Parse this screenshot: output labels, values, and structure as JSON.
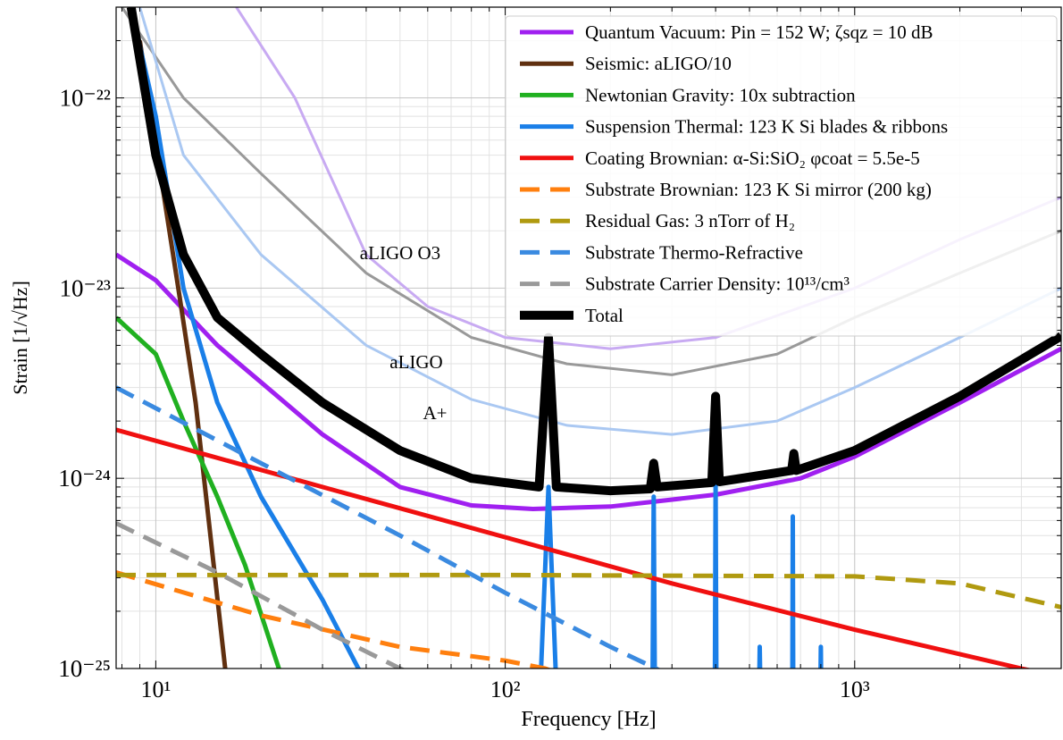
{
  "chart_data": {
    "type": "line",
    "x_label": "Frequency [Hz]",
    "y_label": "Strain [1/√Hz]",
    "xscale": "log",
    "yscale": "log",
    "grid": true,
    "legend": "upper right",
    "xlim": [
      7.7,
      3900
    ],
    "ylim": [
      1e-25,
      3e-22
    ],
    "xticks": [
      {
        "value": 10,
        "label": "10¹"
      },
      {
        "value": 100,
        "label": "10²"
      },
      {
        "value": 1000,
        "label": "10³"
      }
    ],
    "yticks": [
      {
        "value": 1e-25,
        "label": "10⁻²⁵"
      },
      {
        "value": 1e-24,
        "label": "10⁻²⁴"
      },
      {
        "value": 1e-23,
        "label": "10⁻²³"
      },
      {
        "value": 1e-22,
        "label": "10⁻²²"
      }
    ],
    "xminorticks": [
      8,
      9,
      20,
      30,
      40,
      50,
      60,
      70,
      80,
      90,
      200,
      300,
      400,
      500,
      600,
      700,
      800,
      900,
      2000,
      3000
    ],
    "yminorticks": [
      2e-25,
      3e-25,
      4e-25,
      5e-25,
      6e-25,
      7e-25,
      8e-25,
      9e-25,
      2e-24,
      3e-24,
      4e-24,
      5e-24,
      6e-24,
      7e-24,
      8e-24,
      9e-24,
      2e-23,
      3e-23,
      4e-23,
      5e-23,
      6e-23,
      7e-23,
      8e-23,
      9e-23,
      2e-22
    ],
    "reference_curves": [
      {
        "name": "aLIGO O3",
        "color": "#c8aaf2",
        "x": [
          17,
          25,
          40,
          60,
          100,
          200,
          400,
          1000,
          2000,
          3900
        ],
        "values": [
          3e-22,
          1e-22,
          1.5e-23,
          8e-24,
          5.5e-24,
          4.8e-24,
          5.5e-24,
          1e-23,
          1.8e-23,
          3e-23
        ]
      },
      {
        "name": "aLIGO",
        "color": "#999999",
        "x": [
          8,
          12,
          20,
          40,
          80,
          150,
          300,
          600,
          1000,
          2000,
          3900
        ],
        "values": [
          3e-22,
          1e-22,
          4e-23,
          1.2e-23,
          5.5e-24,
          4e-24,
          3.5e-24,
          4.5e-24,
          7e-24,
          1.2e-23,
          2e-23
        ]
      },
      {
        "name": "A+",
        "color": "#aac8f2",
        "x": [
          9,
          12,
          20,
          40,
          80,
          150,
          300,
          600,
          1000,
          2000,
          3900
        ],
        "values": [
          3e-22,
          5e-23,
          1.5e-23,
          5e-24,
          2.6e-24,
          1.9e-24,
          1.7e-24,
          2e-24,
          3e-24,
          5.5e-24,
          1e-23
        ]
      }
    ],
    "series": [
      {
        "name": "Quantum Vacuum: Pin = 152 W; ζsqz = 10 dB",
        "color": "#a020f0",
        "dashed": false,
        "x": [
          7.7,
          10,
          15,
          20,
          30,
          50,
          80,
          120,
          200,
          400,
          700,
          1000,
          2000,
          3900
        ],
        "values": [
          1.5e-23,
          1.1e-23,
          5e-24,
          3.2e-24,
          1.7e-24,
          9e-25,
          7.2e-25,
          6.9e-25,
          7.1e-25,
          8.2e-25,
          1e-24,
          1.3e-24,
          2.5e-24,
          4.8e-24
        ]
      },
      {
        "name": "Seismic: aLIGO/10",
        "color": "#603010",
        "dashed": false,
        "x": [
          9,
          11.6,
          13,
          15.8,
          17
        ],
        "values": [
          2e-22,
          1e-23,
          2.5e-24,
          1e-25,
          5e-26
        ]
      },
      {
        "name": "Newtonian Gravity: 10x subtraction",
        "color": "#20b020",
        "dashed": false,
        "x": [
          7.7,
          10,
          12,
          15,
          18,
          22.5,
          25
        ],
        "values": [
          7e-24,
          4.5e-24,
          2e-24,
          8e-25,
          3.5e-25,
          1e-25,
          7e-26
        ]
      },
      {
        "name": "Suspension Thermal: 123 K Si blades & ribbons",
        "color": "#1a7fe8",
        "dashed": false,
        "x": [
          8.5,
          10,
          12,
          15,
          20,
          30,
          38,
          42,
          null,
          126,
          133,
          140,
          null,
          264,
          266,
          268,
          null,
          398,
          400,
          402,
          null,
          533,
          535,
          537,
          null,
          663,
          665,
          667,
          null,
          798,
          800,
          802
        ],
        "values": [
          3e-22,
          8e-23,
          1e-23,
          2.5e-24,
          8e-25,
          2.3e-25,
          1e-25,
          8e-26,
          null,
          8e-26,
          9e-25,
          8e-26,
          null,
          8e-26,
          8e-25,
          8e-26,
          null,
          8e-26,
          9.5e-25,
          8e-26,
          null,
          8e-26,
          1.3e-25,
          8e-26,
          null,
          8e-26,
          6.3e-25,
          8e-26,
          null,
          8e-26,
          1.3e-25,
          8e-26
        ]
      },
      {
        "name": "Coating Brownian: α-Si:SiO₂ φcoat = 5.5e-5",
        "color": "#f01010",
        "dashed": false,
        "x": [
          7.7,
          30,
          100,
          300,
          1000,
          3000,
          3900
        ],
        "values": [
          1.8e-24,
          9e-25,
          4.9e-25,
          2.8e-25,
          1.6e-25,
          1e-25,
          9e-26
        ]
      },
      {
        "name": "Substrate Brownian: 123 K Si mirror (200 kg)",
        "color": "#ff7f0e",
        "dashed": true,
        "x": [
          7.7,
          20,
          50,
          100,
          130,
          140
        ],
        "values": [
          3.2e-25,
          1.9e-25,
          1.3e-25,
          1.1e-25,
          1e-25,
          9.5e-26
        ]
      },
      {
        "name": "Residual Gas: 3 nTorr of H₂",
        "color": "#b09a10",
        "dashed": true,
        "x": [
          7.7,
          100,
          1000,
          2000,
          3900
        ],
        "values": [
          3.1e-25,
          3.1e-25,
          3.05e-25,
          2.8e-25,
          2.1e-25
        ]
      },
      {
        "name": "Substrate Thermo-Refractive",
        "color": "#3a8ae0",
        "dashed": true,
        "x": [
          7.7,
          20,
          50,
          100,
          200,
          270,
          300
        ],
        "values": [
          3e-24,
          1.2e-24,
          5e-25,
          2.5e-25,
          1.3e-25,
          1e-25,
          9e-26
        ]
      },
      {
        "name": "Substrate Carrier Density: 10¹³/cm³",
        "color": "#999999",
        "dashed": true,
        "x": [
          7.7,
          15,
          30,
          50,
          60
        ],
        "values": [
          5.8e-25,
          3.2e-25,
          1.6e-25,
          1e-25,
          8.5e-26
        ]
      },
      {
        "name": "Total",
        "color": "#000000",
        "dashed": false,
        "total": true,
        "x": [
          8.5,
          10,
          12,
          15,
          20,
          30,
          50,
          80,
          125,
          133,
          140,
          200,
          260,
          266,
          272,
          390,
          400,
          410,
          660,
          670,
          680,
          1000,
          2000,
          3900
        ],
        "values": [
          3e-22,
          5e-23,
          1.5e-23,
          7e-24,
          4.5e-24,
          2.5e-24,
          1.4e-24,
          1e-24,
          9e-25,
          5.5e-24,
          9e-25,
          8.6e-25,
          8.8e-25,
          1.2e-24,
          9e-25,
          9.5e-25,
          2.7e-24,
          9.6e-25,
          1.1e-24,
          1.35e-24,
          1.1e-24,
          1.4e-24,
          2.7e-24,
          5.6e-24
        ]
      }
    ]
  }
}
